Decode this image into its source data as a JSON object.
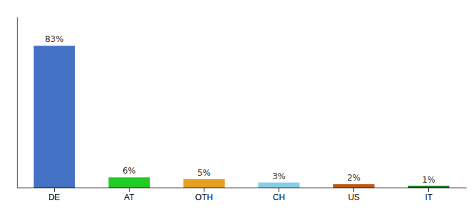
{
  "chart_data": {
    "type": "bar",
    "categories": [
      "DE",
      "AT",
      "OTH",
      "CH",
      "US",
      "IT"
    ],
    "values": [
      83,
      6,
      5,
      3,
      2,
      1
    ],
    "value_labels": [
      "83%",
      "6%",
      "5%",
      "3%",
      "2%",
      "1%"
    ],
    "colors": [
      "#4472c4",
      "#22cc22",
      "#e8a020",
      "#87ceeb",
      "#c05a10",
      "#1a7a1a"
    ],
    "ylim": [
      0,
      100
    ],
    "data_labels": true,
    "tick_labels": "x",
    "grid": false
  }
}
